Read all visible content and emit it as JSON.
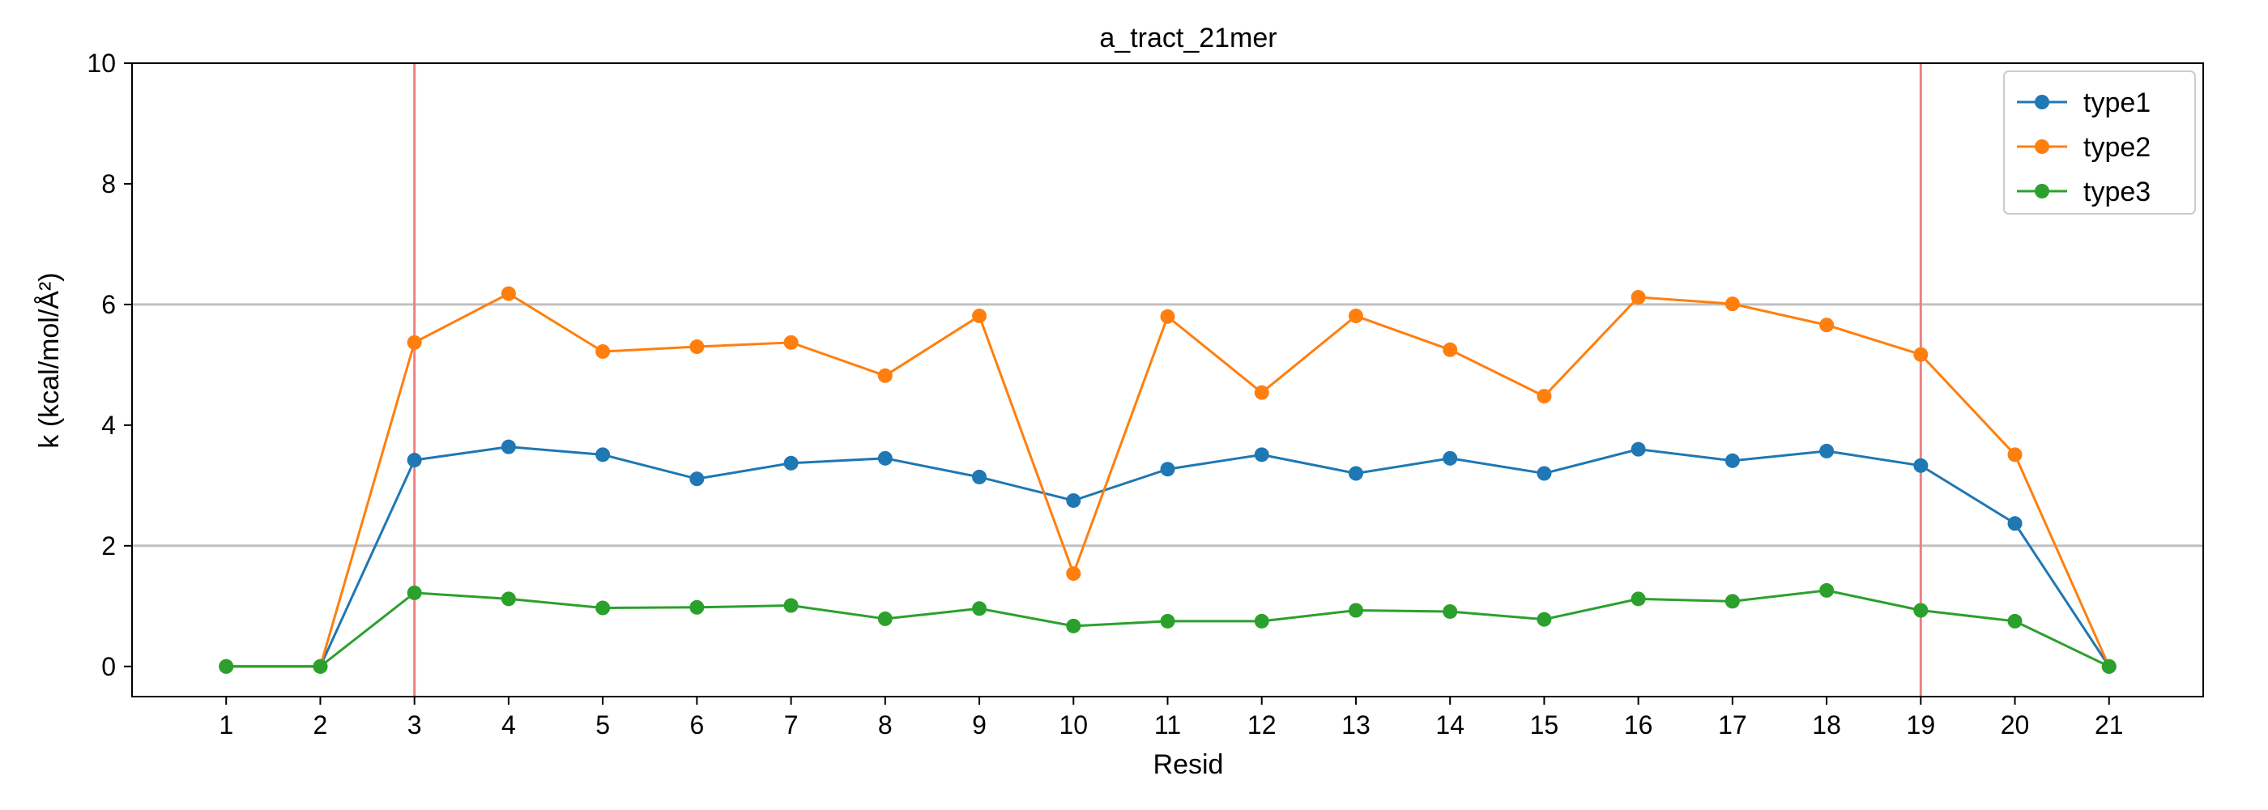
{
  "chart_data": {
    "type": "line",
    "title": "a_tract_21mer",
    "xlabel": "Resid",
    "ylabel": "k (kcal/mol/Å²)",
    "x": [
      1,
      2,
      3,
      4,
      5,
      6,
      7,
      8,
      9,
      10,
      11,
      12,
      13,
      14,
      15,
      16,
      17,
      18,
      19,
      20,
      21
    ],
    "xlim": [
      0,
      22
    ],
    "ylim": [
      -0.5,
      10
    ],
    "yticks": [
      0,
      2,
      4,
      6,
      8,
      10
    ],
    "hlines": [
      2,
      6
    ],
    "vlines": [
      3,
      19
    ],
    "legend_position": "top-right",
    "series": [
      {
        "name": "type1",
        "color": "#1f77b4",
        "values": [
          0,
          0,
          3.42,
          3.64,
          3.51,
          3.11,
          3.37,
          3.45,
          3.14,
          2.75,
          3.27,
          3.51,
          3.2,
          3.45,
          3.2,
          3.6,
          3.41,
          3.57,
          3.33,
          2.37,
          0
        ]
      },
      {
        "name": "type2",
        "color": "#ff7f0e",
        "values": [
          0,
          0,
          5.37,
          6.18,
          5.22,
          5.3,
          5.37,
          4.82,
          5.81,
          1.54,
          5.8,
          4.54,
          5.81,
          5.25,
          4.48,
          6.12,
          6.01,
          5.66,
          5.17,
          3.51,
          0
        ]
      },
      {
        "name": "type3",
        "color": "#2ca02c",
        "values": [
          0,
          0,
          1.22,
          1.12,
          0.97,
          0.98,
          1.01,
          0.79,
          0.96,
          0.67,
          0.75,
          0.75,
          0.93,
          0.91,
          0.78,
          1.12,
          1.08,
          1.26,
          0.93,
          0.75,
          0
        ]
      }
    ]
  }
}
